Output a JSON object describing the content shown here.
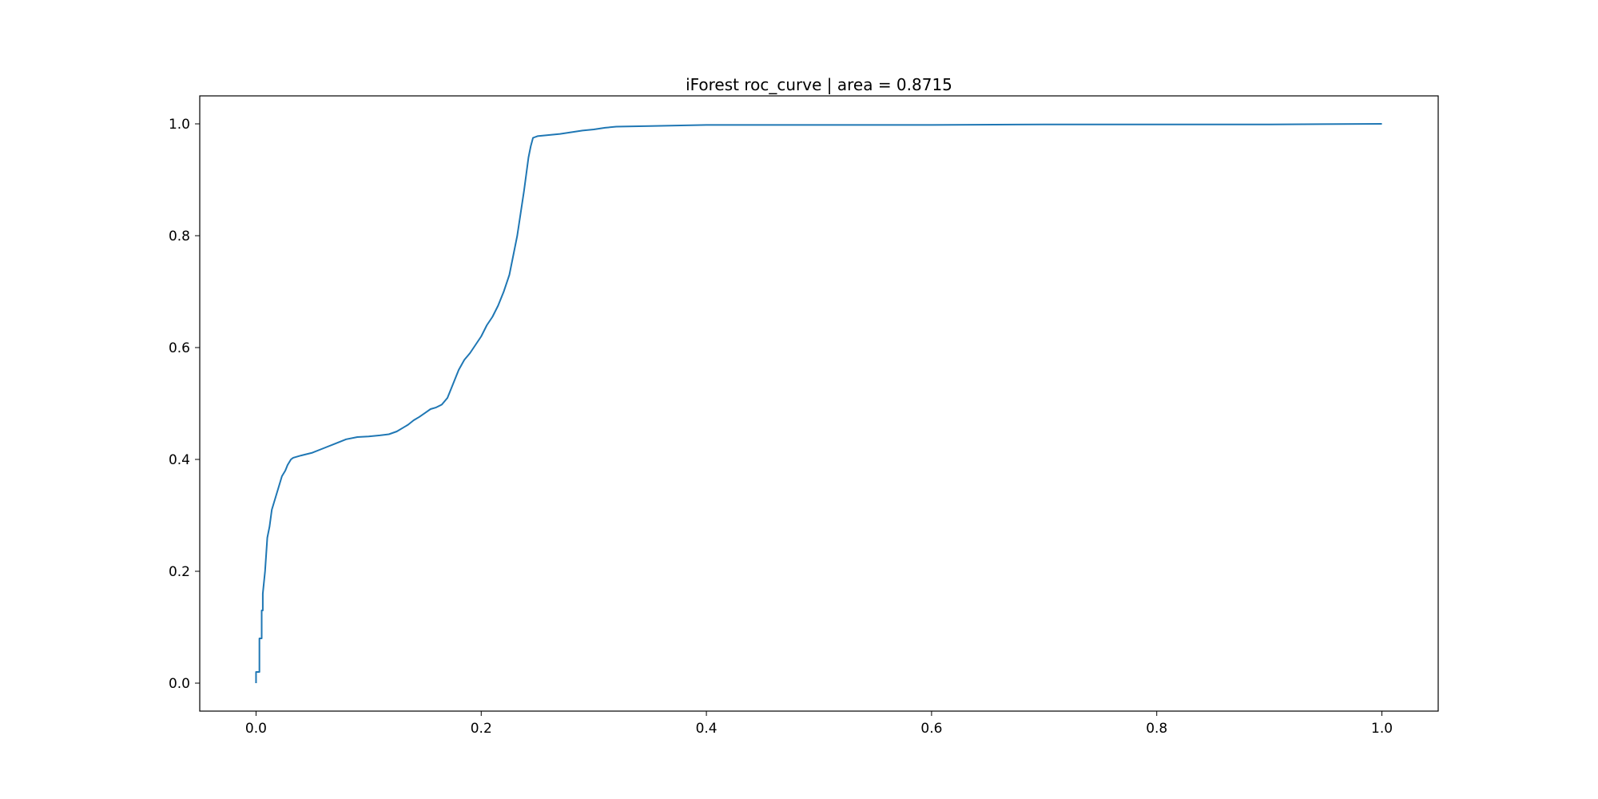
{
  "chart_data": {
    "type": "line",
    "title": "iForest  roc_curve | area = 0.8715",
    "xlabel": "",
    "ylabel": "",
    "xlim": [
      -0.05,
      1.05
    ],
    "ylim": [
      -0.05,
      1.05
    ],
    "grid": false,
    "x_ticks": [
      0.0,
      0.2,
      0.4,
      0.6,
      0.8,
      1.0
    ],
    "x_tick_labels": [
      "0.0",
      "0.2",
      "0.4",
      "0.6",
      "0.8",
      "1.0"
    ],
    "y_ticks": [
      0.0,
      0.2,
      0.4,
      0.6,
      0.8,
      1.0
    ],
    "y_tick_labels": [
      "0.0",
      "0.2",
      "0.4",
      "0.6",
      "0.8",
      "1.0"
    ],
    "line_color": "#1f77b4",
    "series": [
      {
        "x": [
          0.0,
          0.0,
          0.003,
          0.003,
          0.005,
          0.005,
          0.006,
          0.006,
          0.008,
          0.009,
          0.01,
          0.012,
          0.014,
          0.017,
          0.02,
          0.023,
          0.026,
          0.028,
          0.031,
          0.033,
          0.04,
          0.05,
          0.06,
          0.07,
          0.08,
          0.09,
          0.1,
          0.11,
          0.118,
          0.125,
          0.13,
          0.135,
          0.14,
          0.145,
          0.15,
          0.155,
          0.16,
          0.165,
          0.17,
          0.175,
          0.18,
          0.185,
          0.19,
          0.195,
          0.2,
          0.205,
          0.21,
          0.215,
          0.22,
          0.225,
          0.228,
          0.232,
          0.235,
          0.238,
          0.24,
          0.242,
          0.244,
          0.246,
          0.25,
          0.26,
          0.27,
          0.28,
          0.29,
          0.3,
          0.31,
          0.32,
          0.35,
          0.4,
          0.42,
          0.5,
          0.6,
          0.7,
          0.8,
          0.9,
          1.0
        ],
        "y": [
          0.0,
          0.02,
          0.02,
          0.08,
          0.08,
          0.13,
          0.13,
          0.16,
          0.2,
          0.23,
          0.26,
          0.28,
          0.31,
          0.33,
          0.35,
          0.37,
          0.38,
          0.39,
          0.4,
          0.403,
          0.407,
          0.412,
          0.42,
          0.428,
          0.436,
          0.44,
          0.441,
          0.443,
          0.445,
          0.45,
          0.456,
          0.462,
          0.47,
          0.476,
          0.483,
          0.49,
          0.493,
          0.498,
          0.51,
          0.535,
          0.56,
          0.578,
          0.59,
          0.605,
          0.62,
          0.64,
          0.655,
          0.675,
          0.7,
          0.73,
          0.76,
          0.8,
          0.84,
          0.88,
          0.91,
          0.94,
          0.96,
          0.975,
          0.978,
          0.98,
          0.982,
          0.985,
          0.988,
          0.99,
          0.993,
          0.995,
          0.996,
          0.998,
          0.998,
          0.998,
          0.998,
          0.999,
          0.999,
          0.999,
          1.0
        ]
      }
    ]
  }
}
